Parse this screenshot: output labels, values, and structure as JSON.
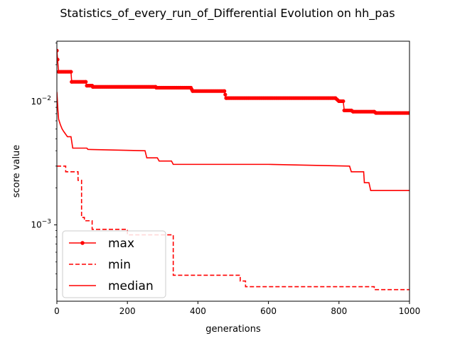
{
  "chart_data": {
    "type": "line",
    "title": "Statistics_of_every_run_of_Differential Evolution on hh_pas",
    "xlabel": "generations",
    "ylabel": "score value",
    "xlim": [
      0,
      1000
    ],
    "ylim": [
      0.00024,
      0.031
    ],
    "yscale": "log",
    "grid": false,
    "legend_position": "lower-left",
    "x_ticks": [
      0,
      200,
      400,
      600,
      800,
      1000
    ],
    "y_ticks": [
      {
        "value": 0.001,
        "base": "10",
        "exp": "−3"
      },
      {
        "value": 0.01,
        "base": "10",
        "exp": "−2"
      }
    ],
    "series": [
      {
        "name": "max",
        "color": "#ff0000",
        "style": "solid-marker",
        "points": [
          [
            0,
            0.026
          ],
          [
            2,
            0.022
          ],
          [
            5,
            0.0175
          ],
          [
            40,
            0.0175
          ],
          [
            42,
            0.0145
          ],
          [
            82,
            0.0145
          ],
          [
            85,
            0.0135
          ],
          [
            100,
            0.0135
          ],
          [
            102,
            0.0132
          ],
          [
            280,
            0.0132
          ],
          [
            282,
            0.013
          ],
          [
            380,
            0.013
          ],
          [
            385,
            0.0122
          ],
          [
            475,
            0.0122
          ],
          [
            480,
            0.0107
          ],
          [
            790,
            0.0107
          ],
          [
            800,
            0.0101
          ],
          [
            812,
            0.0101
          ],
          [
            815,
            0.0085
          ],
          [
            835,
            0.0085
          ],
          [
            840,
            0.0083
          ],
          [
            900,
            0.0083
          ],
          [
            905,
            0.0081
          ],
          [
            1000,
            0.0081
          ]
        ]
      },
      {
        "name": "min",
        "color": "#ff0000",
        "style": "dashed",
        "points": [
          [
            0,
            0.003
          ],
          [
            25,
            0.003
          ],
          [
            25,
            0.0027
          ],
          [
            60,
            0.0027
          ],
          [
            60,
            0.0023
          ],
          [
            70,
            0.0023
          ],
          [
            70,
            0.00115
          ],
          [
            78,
            0.00115
          ],
          [
            78,
            0.00108
          ],
          [
            100,
            0.00108
          ],
          [
            100,
            0.00092
          ],
          [
            200,
            0.00092
          ],
          [
            200,
            0.00083
          ],
          [
            330,
            0.00083
          ],
          [
            330,
            0.00039
          ],
          [
            520,
            0.00039
          ],
          [
            520,
            0.00035
          ],
          [
            535,
            0.00035
          ],
          [
            535,
            0.000315
          ],
          [
            900,
            0.000315
          ],
          [
            900,
            0.000298
          ],
          [
            1000,
            0.000298
          ]
        ]
      },
      {
        "name": "median",
        "color": "#ff0000",
        "style": "solid",
        "points": [
          [
            0,
            0.012
          ],
          [
            3,
            0.0085
          ],
          [
            5,
            0.0072
          ],
          [
            10,
            0.0065
          ],
          [
            15,
            0.006
          ],
          [
            20,
            0.0057
          ],
          [
            30,
            0.0052
          ],
          [
            40,
            0.0052
          ],
          [
            45,
            0.0042
          ],
          [
            85,
            0.0042
          ],
          [
            88,
            0.0041
          ],
          [
            250,
            0.004
          ],
          [
            255,
            0.0035
          ],
          [
            285,
            0.0035
          ],
          [
            290,
            0.0033
          ],
          [
            325,
            0.0033
          ],
          [
            330,
            0.0031
          ],
          [
            600,
            0.0031
          ],
          [
            830,
            0.003
          ],
          [
            835,
            0.0027
          ],
          [
            870,
            0.0027
          ],
          [
            872,
            0.0022
          ],
          [
            885,
            0.0022
          ],
          [
            890,
            0.0019
          ],
          [
            1000,
            0.0019
          ]
        ]
      }
    ]
  }
}
